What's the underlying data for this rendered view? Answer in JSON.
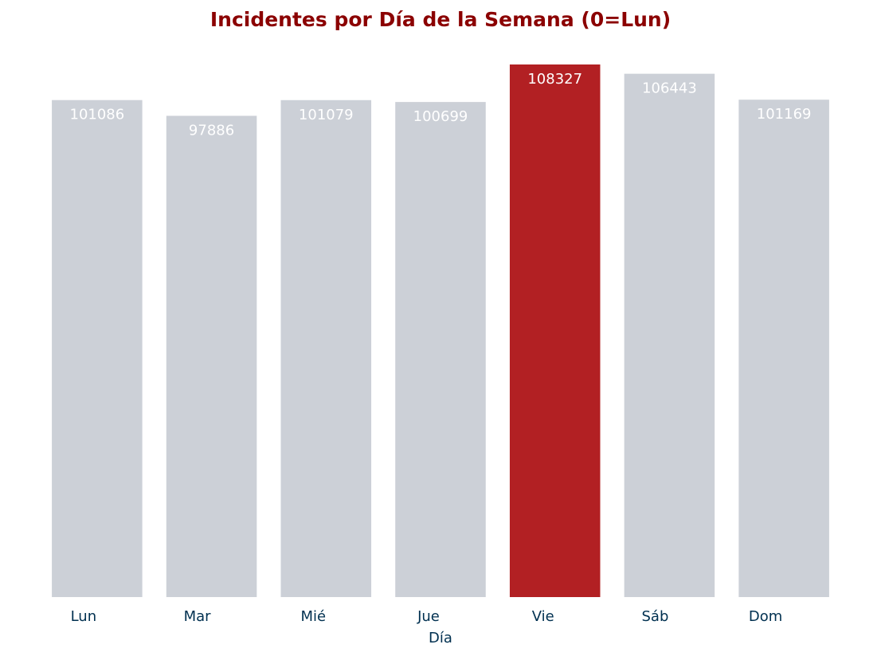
{
  "chart_data": {
    "type": "bar",
    "title": "Incidentes por Día de la Semana (0=Lun)",
    "xlabel": "Día",
    "ylabel": "",
    "categories": [
      "Lun",
      "Mar",
      "Mié",
      "Jue",
      "Vie",
      "Sáb",
      "Dom"
    ],
    "values": [
      101086,
      97886,
      101079,
      100699,
      108327,
      106443,
      101169
    ],
    "highlight_index": 4,
    "ylim": [
      0,
      108327
    ],
    "grid": false,
    "legend": false,
    "data_labels": "inside-top"
  },
  "colors": {
    "title": "#8b0000",
    "bar_default": "#ccd0d7",
    "bar_highlight": "#b22023",
    "data_label": "#ffffff",
    "tick_label": "#003050",
    "axis_label": "#003050"
  }
}
